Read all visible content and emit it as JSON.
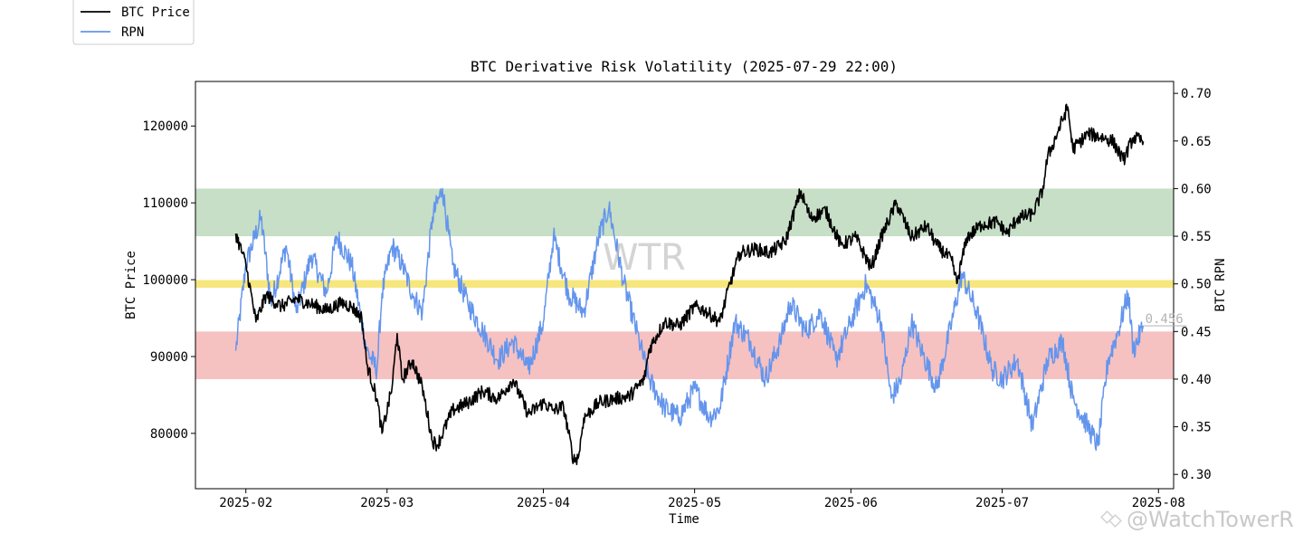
{
  "chart_data": {
    "type": "line",
    "title": "BTC Derivative Risk Volatility (2025-07-29 22:00)",
    "xlabel": "Time",
    "ylabel_left": "BTC Price",
    "ylabel_right": "BTC RPN",
    "x_range": [
      "2025-01-22",
      "2025-08-04"
    ],
    "ylim_left": [
      72800,
      125800
    ],
    "ylim_right": [
      0.285,
      0.7125
    ],
    "x_ticks": [
      "2025-02",
      "2025-03",
      "2025-04",
      "2025-05",
      "2025-06",
      "2025-07",
      "2025-08"
    ],
    "y_ticks_left": [
      80000,
      90000,
      100000,
      110000,
      120000
    ],
    "y_ticks_right": [
      "0.30",
      "0.35",
      "0.40",
      "0.45",
      "0.50",
      "0.55",
      "0.60",
      "0.65",
      "0.70"
    ],
    "grid": false,
    "legend_position": "top-left (outside axes)",
    "legend": [
      "BTC Price",
      "RPN"
    ],
    "bands_rpn": [
      {
        "from": 0.55,
        "to": 0.6,
        "color": "#c6dfc6"
      },
      {
        "from": 0.496,
        "to": 0.504,
        "color": "#f7e67c"
      },
      {
        "from": 0.4,
        "to": 0.45,
        "color": "#f6c1c1"
      }
    ],
    "series": [
      {
        "name": "BTC Price",
        "axis": "left",
        "color": "#000000",
        "points": [
          [
            "2025-01-30",
            106000
          ],
          [
            "2025-02-01",
            102000
          ],
          [
            "2025-02-03",
            94500
          ],
          [
            "2025-02-05",
            98000
          ],
          [
            "2025-02-08",
            96500
          ],
          [
            "2025-02-11",
            97500
          ],
          [
            "2025-02-14",
            96800
          ],
          [
            "2025-02-17",
            96000
          ],
          [
            "2025-02-20",
            97000
          ],
          [
            "2025-02-22",
            96500
          ],
          [
            "2025-02-24",
            95000
          ],
          [
            "2025-02-25",
            89000
          ],
          [
            "2025-02-27",
            84500
          ],
          [
            "2025-02-28",
            80000
          ],
          [
            "2025-03-02",
            86000
          ],
          [
            "2025-03-03",
            93000
          ],
          [
            "2025-03-04",
            87000
          ],
          [
            "2025-03-06",
            89500
          ],
          [
            "2025-03-08",
            86000
          ],
          [
            "2025-03-10",
            79000
          ],
          [
            "2025-03-11",
            78500
          ],
          [
            "2025-03-14",
            83000
          ],
          [
            "2025-03-17",
            84000
          ],
          [
            "2025-03-20",
            85500
          ],
          [
            "2025-03-23",
            84500
          ],
          [
            "2025-03-26",
            87000
          ],
          [
            "2025-03-29",
            82500
          ],
          [
            "2025-04-01",
            84000
          ],
          [
            "2025-04-03",
            83000
          ],
          [
            "2025-04-05",
            83500
          ],
          [
            "2025-04-07",
            76500
          ],
          [
            "2025-04-08",
            77000
          ],
          [
            "2025-04-09",
            82000
          ],
          [
            "2025-04-12",
            84000
          ],
          [
            "2025-04-15",
            84500
          ],
          [
            "2025-04-18",
            84800
          ],
          [
            "2025-04-21",
            87000
          ],
          [
            "2025-04-22",
            91000
          ],
          [
            "2025-04-25",
            94500
          ],
          [
            "2025-04-28",
            94000
          ],
          [
            "2025-05-01",
            96500
          ],
          [
            "2025-05-03",
            96000
          ],
          [
            "2025-05-06",
            94500
          ],
          [
            "2025-05-08",
            99500
          ],
          [
            "2025-05-10",
            103500
          ],
          [
            "2025-05-13",
            104000
          ],
          [
            "2025-05-16",
            103500
          ],
          [
            "2025-05-19",
            105000
          ],
          [
            "2025-05-22",
            111500
          ],
          [
            "2025-05-24",
            108000
          ],
          [
            "2025-05-27",
            109000
          ],
          [
            "2025-05-30",
            104500
          ],
          [
            "2025-06-02",
            105500
          ],
          [
            "2025-06-05",
            101500
          ],
          [
            "2025-06-07",
            105500
          ],
          [
            "2025-06-10",
            110000
          ],
          [
            "2025-06-13",
            105500
          ],
          [
            "2025-06-16",
            107000
          ],
          [
            "2025-06-18",
            104500
          ],
          [
            "2025-06-21",
            102500
          ],
          [
            "2025-06-22",
            99500
          ],
          [
            "2025-06-24",
            105500
          ],
          [
            "2025-06-27",
            107200
          ],
          [
            "2025-06-30",
            107500
          ],
          [
            "2025-07-02",
            106000
          ],
          [
            "2025-07-04",
            108000
          ],
          [
            "2025-07-07",
            108500
          ],
          [
            "2025-07-09",
            111500
          ],
          [
            "2025-07-10",
            116000
          ],
          [
            "2025-07-11",
            117500
          ],
          [
            "2025-07-14",
            122500
          ],
          [
            "2025-07-15",
            117000
          ],
          [
            "2025-07-18",
            119000
          ],
          [
            "2025-07-21",
            118500
          ],
          [
            "2025-07-23",
            118000
          ],
          [
            "2025-07-25",
            115500
          ],
          [
            "2025-07-27",
            118500
          ],
          [
            "2025-07-29",
            118000
          ]
        ]
      },
      {
        "name": "RPN",
        "axis": "right",
        "color": "#6495ed",
        "points": [
          [
            "2025-01-30",
            0.43
          ],
          [
            "2025-02-01",
            0.52
          ],
          [
            "2025-02-04",
            0.57
          ],
          [
            "2025-02-06",
            0.48
          ],
          [
            "2025-02-09",
            0.54
          ],
          [
            "2025-02-11",
            0.47
          ],
          [
            "2025-02-14",
            0.53
          ],
          [
            "2025-02-17",
            0.49
          ],
          [
            "2025-02-19",
            0.55
          ],
          [
            "2025-02-22",
            0.52
          ],
          [
            "2025-02-25",
            0.43
          ],
          [
            "2025-02-27",
            0.41
          ],
          [
            "2025-02-28",
            0.49
          ],
          [
            "2025-03-02",
            0.54
          ],
          [
            "2025-03-04",
            0.52
          ],
          [
            "2025-03-06",
            0.49
          ],
          [
            "2025-03-08",
            0.47
          ],
          [
            "2025-03-10",
            0.57
          ],
          [
            "2025-03-12",
            0.6
          ],
          [
            "2025-03-14",
            0.52
          ],
          [
            "2025-03-17",
            0.48
          ],
          [
            "2025-03-20",
            0.45
          ],
          [
            "2025-03-23",
            0.42
          ],
          [
            "2025-03-26",
            0.44
          ],
          [
            "2025-03-29",
            0.41
          ],
          [
            "2025-04-01",
            0.46
          ],
          [
            "2025-04-03",
            0.55
          ],
          [
            "2025-04-06",
            0.49
          ],
          [
            "2025-04-09",
            0.47
          ],
          [
            "2025-04-12",
            0.55
          ],
          [
            "2025-04-14",
            0.58
          ],
          [
            "2025-04-17",
            0.5
          ],
          [
            "2025-04-20",
            0.44
          ],
          [
            "2025-04-22",
            0.4
          ],
          [
            "2025-04-25",
            0.37
          ],
          [
            "2025-04-28",
            0.36
          ],
          [
            "2025-05-01",
            0.39
          ],
          [
            "2025-05-04",
            0.36
          ],
          [
            "2025-05-06",
            0.37
          ],
          [
            "2025-05-09",
            0.46
          ],
          [
            "2025-05-12",
            0.44
          ],
          [
            "2025-05-15",
            0.4
          ],
          [
            "2025-05-18",
            0.44
          ],
          [
            "2025-05-20",
            0.48
          ],
          [
            "2025-05-23",
            0.45
          ],
          [
            "2025-05-26",
            0.47
          ],
          [
            "2025-05-29",
            0.42
          ],
          [
            "2025-06-01",
            0.46
          ],
          [
            "2025-06-04",
            0.5
          ],
          [
            "2025-06-07",
            0.46
          ],
          [
            "2025-06-09",
            0.38
          ],
          [
            "2025-06-11",
            0.4
          ],
          [
            "2025-06-13",
            0.46
          ],
          [
            "2025-06-15",
            0.43
          ],
          [
            "2025-06-18",
            0.39
          ],
          [
            "2025-06-21",
            0.46
          ],
          [
            "2025-06-23",
            0.51
          ],
          [
            "2025-06-26",
            0.47
          ],
          [
            "2025-06-29",
            0.41
          ],
          [
            "2025-07-01",
            0.4
          ],
          [
            "2025-07-04",
            0.42
          ],
          [
            "2025-07-07",
            0.35
          ],
          [
            "2025-07-10",
            0.42
          ],
          [
            "2025-07-13",
            0.44
          ],
          [
            "2025-07-15",
            0.38
          ],
          [
            "2025-07-18",
            0.35
          ],
          [
            "2025-07-20",
            0.33
          ],
          [
            "2025-07-22",
            0.42
          ],
          [
            "2025-07-24",
            0.45
          ],
          [
            "2025-07-26",
            0.49
          ],
          [
            "2025-07-27",
            0.43
          ],
          [
            "2025-07-29",
            0.456
          ]
        ]
      }
    ],
    "annotations": [
      {
        "text": "0.456",
        "at": [
          "2025-07-29",
          0.456
        ],
        "axis": "right"
      },
      {
        "text": "WTR",
        "kind": "watermark",
        "at": [
          "2025-04-21",
          0.515
        ],
        "axis": "right"
      }
    ]
  },
  "watermark_text": "@WatchTowerR"
}
